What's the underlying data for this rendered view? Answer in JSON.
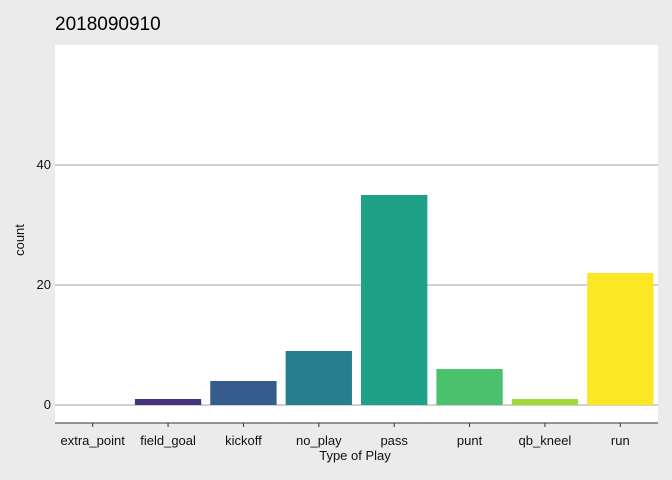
{
  "chart_data": {
    "type": "bar",
    "title": "2018090910",
    "xlabel": "Type of Play",
    "ylabel": "count",
    "categories": [
      "extra_point",
      "field_goal",
      "kickoff",
      "no_play",
      "pass",
      "punt",
      "qb_kneel",
      "run"
    ],
    "values": [
      0,
      1,
      4,
      9,
      35,
      6,
      1,
      22
    ],
    "colors": [
      "#440154",
      "#46337e",
      "#365c8d",
      "#277f8e",
      "#1fa187",
      "#4ac16d",
      "#a0da39",
      "#fde725"
    ],
    "yticks": [
      0,
      20,
      40
    ],
    "ylim": [
      -3,
      60
    ],
    "grid": true,
    "panel_background": "#ffffff",
    "plot_background": "#ebebeb",
    "gridline_color": "#d0d0d0"
  }
}
